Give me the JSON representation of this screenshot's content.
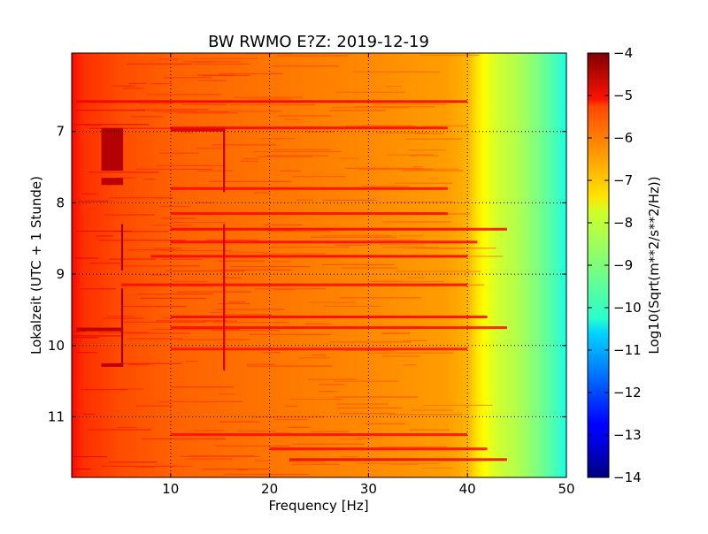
{
  "chart_data": {
    "type": "heatmap",
    "title": "BW RWMO E?Z: 2019-12-19",
    "xlabel": "Frequency [Hz]",
    "ylabel": "Lokalzeit (UTC + 1 Stunde)",
    "xlim": [
      0,
      50
    ],
    "ylim": [
      5.9,
      11.85
    ],
    "x_ticks": [
      10,
      20,
      30,
      40,
      50
    ],
    "y_ticks": [
      7,
      8,
      9,
      10,
      11
    ],
    "grid": true,
    "colormap": "jet",
    "colorbar": {
      "label": "Log10(Sqrt(m**2/s**2/Hz))",
      "range": [
        -14,
        -4
      ],
      "ticks": [
        -4,
        -5,
        -6,
        -7,
        -8,
        -9,
        -10,
        -11,
        -12,
        -13,
        -14
      ]
    },
    "frequency_profile": {
      "frequency_hz": [
        0,
        1,
        5,
        10,
        20,
        30,
        38,
        40,
        41,
        43,
        45,
        47,
        49,
        50
      ],
      "log10_amplitude": [
        -5.3,
        -5.7,
        -6.0,
        -6.2,
        -6.4,
        -6.6,
        -6.8,
        -7.0,
        -7.5,
        -8.2,
        -8.5,
        -9.0,
        -9.6,
        -10.0
      ]
    },
    "events": [
      {
        "time_start": 6.95,
        "time_end": 7.55,
        "freq_start": 3.0,
        "freq_end": 5.2,
        "level": -4.5
      },
      {
        "time_start": 7.65,
        "time_end": 7.75,
        "freq_start": 3.0,
        "freq_end": 5.2,
        "level": -4.6
      },
      {
        "time_start": 8.3,
        "time_end": 8.95,
        "freq_start": 5.0,
        "freq_end": 5.2,
        "level": -4.4
      },
      {
        "time_start": 9.2,
        "time_end": 10.3,
        "freq_start": 5.0,
        "freq_end": 5.2,
        "level": -4.4
      },
      {
        "time_start": 9.75,
        "time_end": 9.8,
        "freq_start": 0.5,
        "freq_end": 5.2,
        "level": -4.6
      },
      {
        "time_start": 10.25,
        "time_end": 10.3,
        "freq_start": 3.0,
        "freq_end": 5.2,
        "level": -4.6
      },
      {
        "time_start": 6.95,
        "time_end": 7.0,
        "freq_start": 10.0,
        "freq_end": 15.5,
        "level": -5.0
      },
      {
        "time_start": 6.95,
        "time_end": 7.85,
        "freq_start": 15.3,
        "freq_end": 15.5,
        "level": -4.7
      },
      {
        "time_start": 8.3,
        "time_end": 10.35,
        "freq_start": 15.3,
        "freq_end": 15.5,
        "level": -4.9
      }
    ],
    "horizontal_bands": [
      {
        "time": 6.58,
        "freq_start": 0.5,
        "freq_end": 40,
        "level": -5.1
      },
      {
        "time": 6.95,
        "freq_start": 10,
        "freq_end": 38,
        "level": -5.2
      },
      {
        "time": 7.8,
        "freq_start": 10,
        "freq_end": 38,
        "level": -5.3
      },
      {
        "time": 8.15,
        "freq_start": 10,
        "freq_end": 38,
        "level": -5.3
      },
      {
        "time": 8.37,
        "freq_start": 10,
        "freq_end": 44,
        "level": -5.2
      },
      {
        "time": 8.55,
        "freq_start": 10,
        "freq_end": 41,
        "level": -5.3
      },
      {
        "time": 8.75,
        "freq_start": 8,
        "freq_end": 40,
        "level": -5.2
      },
      {
        "time": 9.15,
        "freq_start": 5,
        "freq_end": 40,
        "level": -5.3
      },
      {
        "time": 9.6,
        "freq_start": 10,
        "freq_end": 42,
        "level": -5.2
      },
      {
        "time": 9.75,
        "freq_start": 10,
        "freq_end": 44,
        "level": -5.3
      },
      {
        "time": 10.05,
        "freq_start": 10,
        "freq_end": 40,
        "level": -5.4
      },
      {
        "time": 11.25,
        "freq_start": 10,
        "freq_end": 40,
        "level": -5.3
      },
      {
        "time": 11.45,
        "freq_start": 20,
        "freq_end": 42,
        "level": -5.3
      },
      {
        "time": 11.6,
        "freq_start": 22,
        "freq_end": 44,
        "level": -5.1
      }
    ]
  }
}
